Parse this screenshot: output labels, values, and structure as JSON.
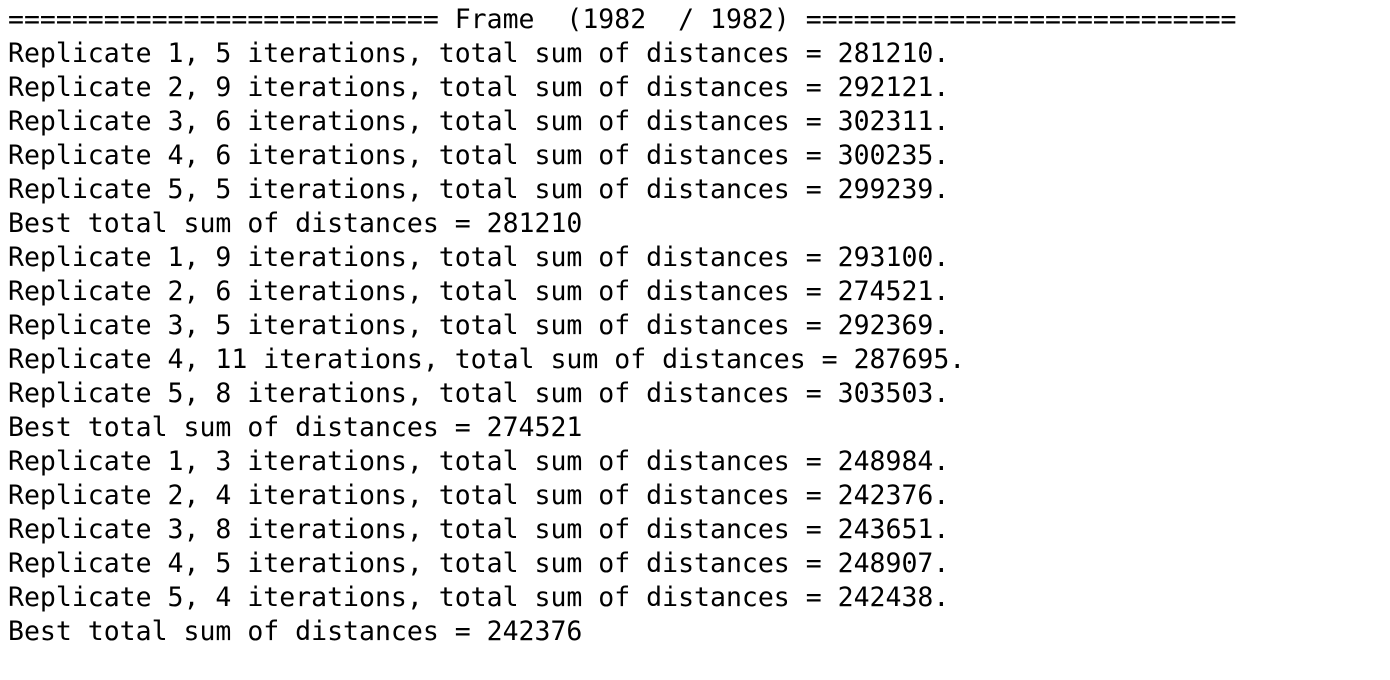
{
  "header": "=========================== Frame  (1982  / 1982) ===========================",
  "blocks": [
    {
      "replicates": [
        "Replicate 1, 5 iterations, total sum of distances = 281210.",
        "Replicate 2, 9 iterations, total sum of distances = 292121.",
        "Replicate 3, 6 iterations, total sum of distances = 302311.",
        "Replicate 4, 6 iterations, total sum of distances = 300235.",
        "Replicate 5, 5 iterations, total sum of distances = 299239."
      ],
      "best": "Best total sum of distances = 281210"
    },
    {
      "replicates": [
        "Replicate 1, 9 iterations, total sum of distances = 293100.",
        "Replicate 2, 6 iterations, total sum of distances = 274521.",
        "Replicate 3, 5 iterations, total sum of distances = 292369.",
        "Replicate 4, 11 iterations, total sum of distances = 287695.",
        "Replicate 5, 8 iterations, total sum of distances = 303503."
      ],
      "best": "Best total sum of distances = 274521"
    },
    {
      "replicates": [
        "Replicate 1, 3 iterations, total sum of distances = 248984.",
        "Replicate 2, 4 iterations, total sum of distances = 242376.",
        "Replicate 3, 8 iterations, total sum of distances = 243651.",
        "Replicate 4, 5 iterations, total sum of distances = 248907.",
        "Replicate 5, 4 iterations, total sum of distances = 242438."
      ],
      "best": "Best total sum of distances = 242376"
    }
  ]
}
